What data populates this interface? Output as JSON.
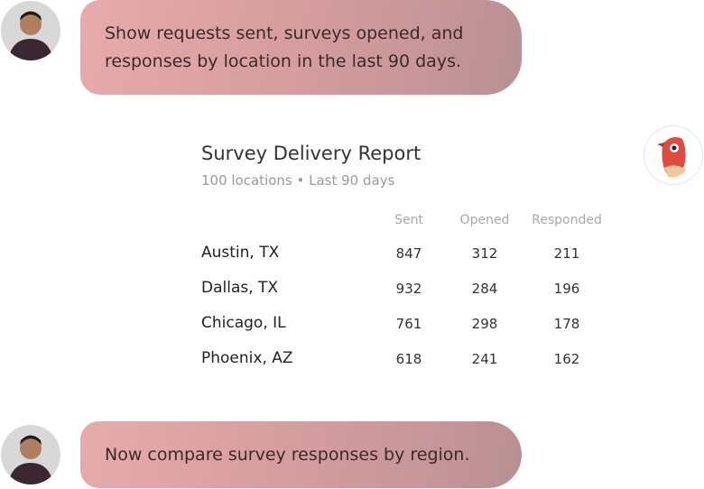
{
  "messages": [
    {
      "role": "user",
      "text": "Show requests sent, surveys opened, and responses by location in the last 90 days."
    },
    {
      "role": "user",
      "text": "Now compare survey responses by region."
    }
  ],
  "report": {
    "title": "Survey Delivery Report",
    "subtitle": "100 locations • Last 90 days",
    "table": {
      "columns": [
        "Sent",
        "Opened",
        "Responded"
      ],
      "rows": [
        [
          "Austin, TX",
          847,
          312,
          211
        ],
        [
          "Dallas, TX",
          932,
          284,
          196
        ],
        [
          "Chicago, IL",
          761,
          298,
          178
        ],
        [
          "Phoenix, AZ",
          618,
          241,
          162
        ]
      ]
    }
  }
}
